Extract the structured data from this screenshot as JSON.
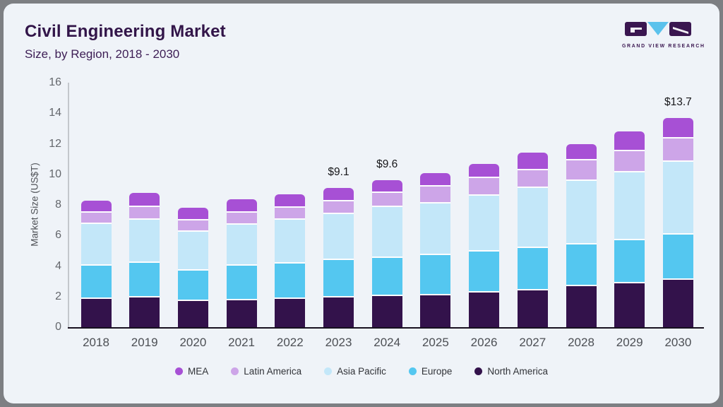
{
  "header": {
    "logo_text": "GRAND VIEW RESEARCH"
  },
  "colors": {
    "card_background": "#eff3f8",
    "frame": "#7d7f83",
    "title_text": "#321549",
    "axis_line": "#c3c7cc",
    "baseline": "#18111f",
    "logo_dark_purple": "#3a1650",
    "logo_light_blue": "#5bc2ec"
  },
  "chart_data": {
    "type": "bar",
    "subtype": "stacked-vertical",
    "title": "Civil Engineering Market",
    "subtitle": "Size, by Region, 2018 - 2030",
    "xlabel": "",
    "ylabel": "Market Size (US$T)",
    "ylim": [
      0,
      16
    ],
    "yticks": [
      0,
      2,
      4,
      6,
      8,
      10,
      12,
      14,
      16
    ],
    "grid": false,
    "legend_position": "bottom",
    "categories": [
      "2018",
      "2019",
      "2020",
      "2021",
      "2022",
      "2023",
      "2024",
      "2025",
      "2026",
      "2027",
      "2028",
      "2029",
      "2030"
    ],
    "series": [
      {
        "name": "North America",
        "color": "#33124b",
        "values": [
          1.85,
          1.95,
          1.7,
          1.77,
          1.85,
          1.92,
          2.02,
          2.1,
          2.27,
          2.38,
          2.68,
          2.87,
          3.1
        ]
      },
      {
        "name": "Europe",
        "color": "#54c7f0",
        "values": [
          2.15,
          2.25,
          2.0,
          2.23,
          2.3,
          2.46,
          2.5,
          2.62,
          2.68,
          2.82,
          2.72,
          2.8,
          2.95
        ]
      },
      {
        "name": "Asia Pacific",
        "color": "#c3e7f9",
        "values": [
          2.75,
          2.85,
          2.55,
          2.7,
          2.9,
          3.0,
          3.35,
          3.38,
          3.63,
          3.9,
          4.18,
          4.45,
          4.78
        ]
      },
      {
        "name": "Latin America",
        "color": "#cda5e8",
        "values": [
          0.75,
          0.82,
          0.72,
          0.8,
          0.77,
          0.87,
          0.93,
          1.12,
          1.16,
          1.15,
          1.34,
          1.38,
          1.5
        ]
      },
      {
        "name": "MEA",
        "color": "#a750d5",
        "values": [
          0.8,
          0.93,
          0.83,
          0.85,
          0.88,
          0.85,
          0.8,
          0.88,
          0.96,
          1.15,
          1.08,
          1.3,
          1.37
        ]
      }
    ],
    "totals": [
      8.3,
      8.8,
      7.8,
      8.35,
      8.7,
      9.1,
      9.6,
      10.1,
      10.7,
      11.4,
      12.0,
      12.8,
      13.7
    ],
    "totals_labels": {
      "2023": "$9.1",
      "2024": "$9.6",
      "2030": "$13.7"
    },
    "legend_order": [
      "MEA",
      "Latin America",
      "Asia Pacific",
      "Europe",
      "North America"
    ]
  }
}
